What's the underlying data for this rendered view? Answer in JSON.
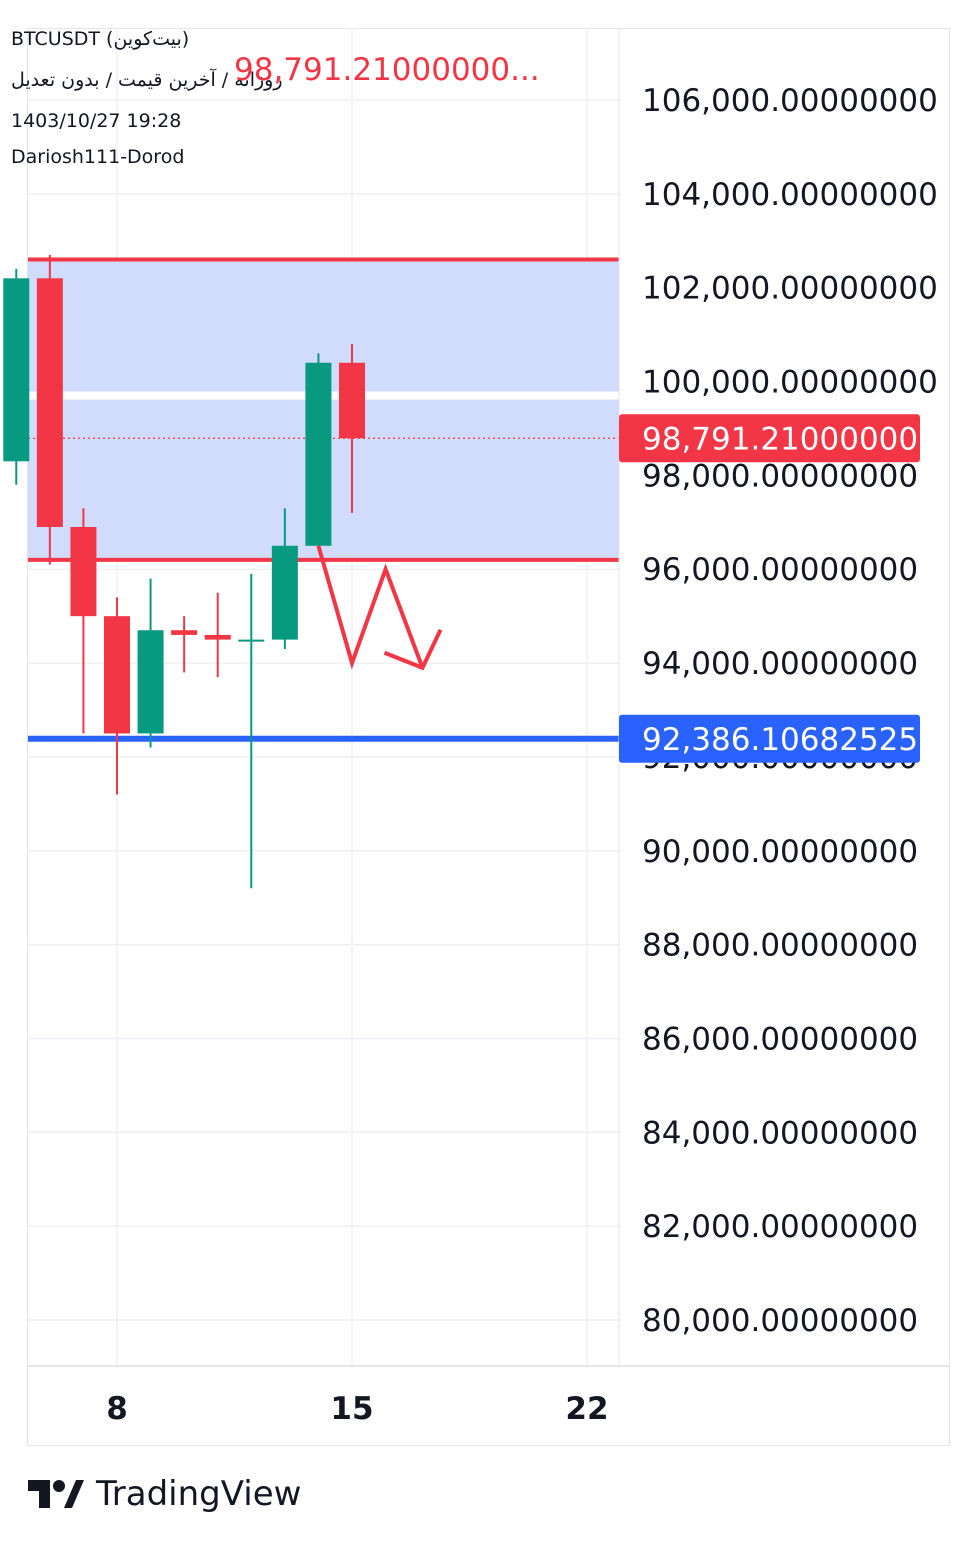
{
  "header": {
    "symbol_line": "BTCUSDT (بیت‌کوین)",
    "subtitle": "روزانه / آخرین قیمت / بدون تعدیل",
    "datetime": "1403/10/27 19:28",
    "author": "Dariosh111-Dorod",
    "last_price_text": "98,791.21000000..."
  },
  "brand": {
    "name": "TradingView"
  },
  "colors": {
    "up": "#089981",
    "down": "#f23645",
    "zone_fill": "#d1dbfb",
    "support_line": "#2962ff",
    "grid": "#eef0f3",
    "axis_text": "#131722"
  },
  "chart_data": {
    "type": "candlestick",
    "ylim": [
      79000,
      108200
    ],
    "y_ticks": [
      106000,
      104000,
      102000,
      100000,
      98000,
      96000,
      94000,
      92000,
      90000,
      88000,
      86000,
      84000,
      82000,
      80000
    ],
    "y_tick_labels": [
      "106,000.00000000",
      "104,000.00000000",
      "102,000.00000000",
      "100,000.00000000",
      "98,000.00000000",
      "96,000.00000000",
      "94,000.00000000",
      "92,000.00000000",
      "90,000.00000000",
      "88,000.00000000",
      "86,000.00000000",
      "84,000.00000000",
      "82,000.00000000",
      "80,000.00000000"
    ],
    "x_ticks": [
      {
        "day": 8,
        "label": "8"
      },
      {
        "day": 15,
        "label": "15"
      },
      {
        "day": 22,
        "label": "22"
      }
    ],
    "candles": [
      {
        "day": 5,
        "open": 98300,
        "high": 102400,
        "low": 97800,
        "close": 102200
      },
      {
        "day": 6,
        "open": 102200,
        "high": 102700,
        "low": 96100,
        "close": 96900
      },
      {
        "day": 7,
        "open": 96900,
        "high": 97300,
        "low": 92500,
        "close": 95000
      },
      {
        "day": 8,
        "open": 95000,
        "high": 95400,
        "low": 91200,
        "close": 92500
      },
      {
        "day": 9,
        "open": 92500,
        "high": 95800,
        "low": 92200,
        "close": 94700
      },
      {
        "day": 10,
        "open": 94700,
        "high": 95000,
        "low": 93800,
        "close": 94600
      },
      {
        "day": 11,
        "open": 94600,
        "high": 95500,
        "low": 93700,
        "close": 94500
      },
      {
        "day": 12,
        "open": 94500,
        "high": 95900,
        "low": 89200,
        "close": 94500
      },
      {
        "day": 13,
        "open": 94500,
        "high": 97300,
        "low": 94300,
        "close": 96500
      },
      {
        "day": 14,
        "open": 96500,
        "high": 100600,
        "low": 96400,
        "close": 100400
      },
      {
        "day": 15,
        "open": 100400,
        "high": 100800,
        "low": 97200,
        "close": 98791.21
      }
    ],
    "zone": {
      "top": 102600,
      "bottom": 96200,
      "mid_line": 99700
    },
    "support": {
      "value": 92386.10682525,
      "label": "92,386.10682525"
    },
    "last_price": {
      "value": 98791.21,
      "label": "98,791.21000000"
    },
    "projection_arrow": [
      {
        "day": 14.0,
        "price": 96500
      },
      {
        "day": 15.0,
        "price": 94000
      },
      {
        "day": 16.0,
        "price": 96000
      },
      {
        "day": 17.1,
        "price": 93900
      }
    ]
  }
}
